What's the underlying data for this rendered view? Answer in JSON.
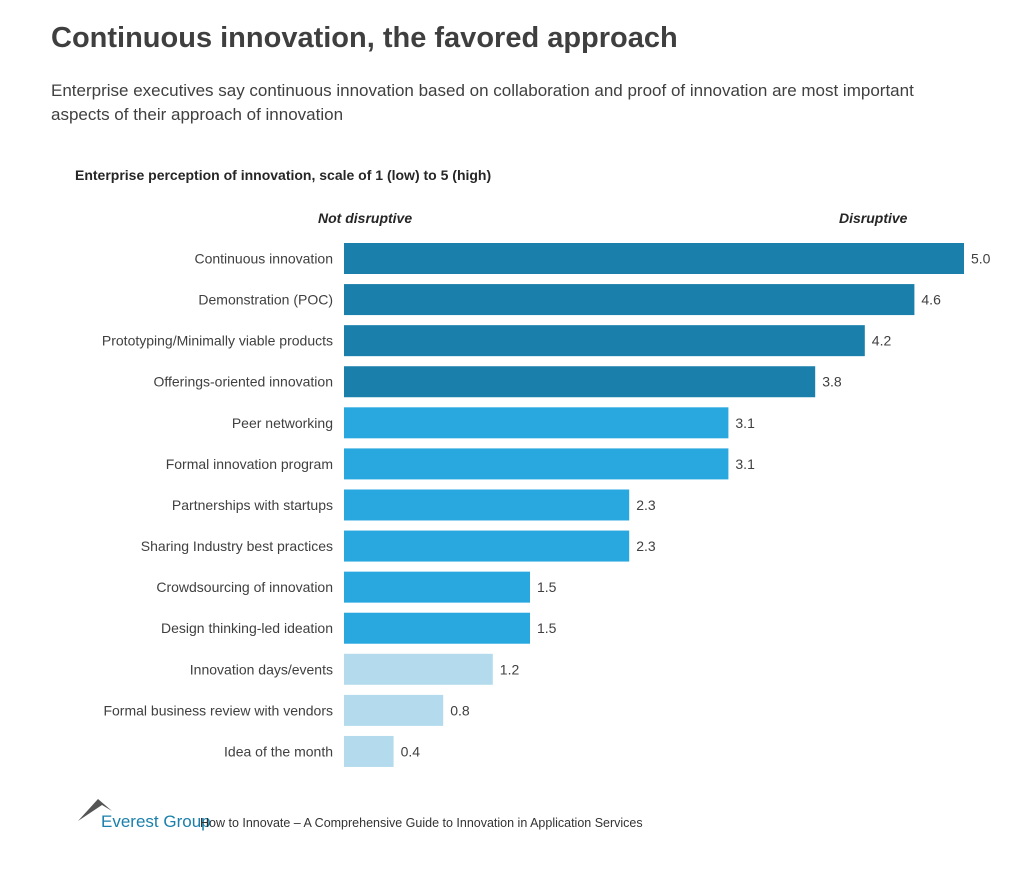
{
  "header": {
    "title": "Continuous innovation, the favored approach",
    "subtitle": "Enterprise executives say continuous innovation based on collaboration and proof of innovation are most important aspects of their approach of innovation"
  },
  "chart_data": {
    "type": "bar",
    "orientation": "horizontal",
    "title": "Enterprise perception of innovation, scale of 1 (low) to 5 (high)",
    "axis_left_label": "Not disruptive",
    "axis_right_label": "Disruptive",
    "xlim": [
      0,
      5
    ],
    "grid": false,
    "categories": [
      "Continuous innovation",
      "Demonstration (POC)",
      "Prototyping/Minimally viable products",
      "Offerings-oriented innovation",
      "Peer networking",
      "Formal innovation program",
      "Partnerships with startups",
      "Sharing Industry best practices",
      "Crowdsourcing of innovation",
      "Design thinking-led ideation",
      "Innovation days/events",
      "Formal business review with vendors",
      "Idea of the month"
    ],
    "values": [
      5.0,
      4.6,
      4.2,
      3.8,
      3.1,
      3.1,
      2.3,
      2.3,
      1.5,
      1.5,
      1.2,
      0.8,
      0.4
    ],
    "data_labels": [
      "5.0",
      "4.6",
      "4.2",
      "3.8",
      "3.1",
      "3.1",
      "2.3",
      "2.3",
      "1.5",
      "1.5",
      "1.2",
      "0.8",
      "0.4"
    ],
    "colors": [
      "#1a80ab",
      "#1a80ab",
      "#1a80ab",
      "#1a80ab",
      "#29a8e0",
      "#29a8e0",
      "#29a8e0",
      "#29a8e0",
      "#29a8e0",
      "#29a8e0",
      "#b3dbed",
      "#b3dbed",
      "#b3dbed"
    ]
  },
  "footer": {
    "brand": "Everest Group",
    "source": "How to Innovate – A Comprehensive Guide to Innovation in Application Services"
  }
}
